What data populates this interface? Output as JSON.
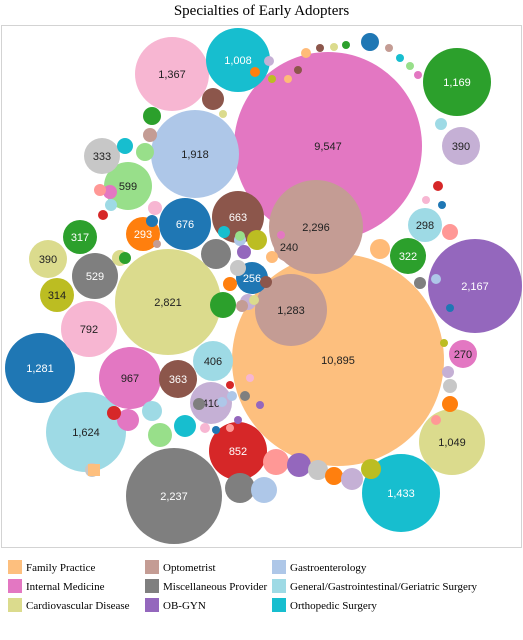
{
  "chart_data": {
    "type": "bubble",
    "title": "Specialties of Early Adopters",
    "legend": [
      {
        "name": "Family Practice",
        "color": "#fdbf7e"
      },
      {
        "name": "Optometrist",
        "color": "#c49c94"
      },
      {
        "name": "Gastroenterology",
        "color": "#aec7e8"
      },
      {
        "name": "Internal Medicine",
        "color": "#e377c2"
      },
      {
        "name": "Miscellaneous Provider",
        "color": "#7f7f7f"
      },
      {
        "name": "General/Gastrointestinal/Geriatric Surgery",
        "color": "#9edae5"
      },
      {
        "name": "Cardiovascular Disease",
        "color": "#dbdb8d"
      },
      {
        "name": "OB-GYN",
        "color": "#9467bd"
      },
      {
        "name": "Orthopedic Surgery",
        "color": "#17becf"
      }
    ],
    "bubbles": [
      {
        "value": 10895,
        "label": "10,895",
        "color": "#fdbf7e"
      },
      {
        "value": 9547,
        "label": "9,547",
        "color": "#e377c2"
      },
      {
        "value": 2821,
        "label": "2,821",
        "color": "#dbdb8d"
      },
      {
        "value": 2296,
        "label": "2,296",
        "color": "#c49c94"
      },
      {
        "value": 2237,
        "label": "2,237",
        "color": "#7f7f7f"
      },
      {
        "value": 2167,
        "label": "2,167",
        "color": "#9467bd"
      },
      {
        "value": 1918,
        "label": "1,918",
        "color": "#aec7e8"
      },
      {
        "value": 1624,
        "label": "1,624",
        "color": "#9edae5"
      },
      {
        "value": 1433,
        "label": "1,433",
        "color": "#17becf"
      },
      {
        "value": 1367,
        "label": "1,367",
        "color": "#f7b6d2"
      },
      {
        "value": 1283,
        "label": "1,283",
        "color": "#c49c94"
      },
      {
        "value": 1281,
        "label": "1,281",
        "color": "#1f77b4"
      },
      {
        "value": 1169,
        "label": "1,169",
        "color": "#2ca02c"
      },
      {
        "value": 1049,
        "label": "1,049",
        "color": "#dbdb8d"
      },
      {
        "value": 1008,
        "label": "1,008",
        "color": "#17becf"
      },
      {
        "value": 967,
        "label": "967",
        "color": "#e377c2"
      },
      {
        "value": 852,
        "label": "852",
        "color": "#d62728"
      },
      {
        "value": 792,
        "label": "792",
        "color": "#f7b6d2"
      },
      {
        "value": 676,
        "label": "676",
        "color": "#1f77b4"
      },
      {
        "value": 663,
        "label": "663",
        "color": "#8c564b"
      },
      {
        "value": 599,
        "label": "599",
        "color": "#98df8a"
      },
      {
        "value": 529,
        "label": "529",
        "color": "#7f7f7f"
      },
      {
        "value": 410,
        "label": "410",
        "color": "#c5b0d5"
      },
      {
        "value": 406,
        "label": "406",
        "color": "#9edae5"
      },
      {
        "value": 390,
        "label": "390",
        "color": "#c5b0d5"
      },
      {
        "value": 390,
        "label": "390",
        "color": "#dbdb8d"
      },
      {
        "value": 363,
        "label": "363",
        "color": "#8c564b"
      },
      {
        "value": 333,
        "label": "333",
        "color": "#c7c7c7"
      },
      {
        "value": 322,
        "label": "322",
        "color": "#2ca02c"
      },
      {
        "value": 317,
        "label": "317",
        "color": "#2ca02c"
      },
      {
        "value": 314,
        "label": "314",
        "color": "#bcbd22"
      },
      {
        "value": 298,
        "label": "298",
        "color": "#9edae5"
      },
      {
        "value": 293,
        "label": "293",
        "color": "#ff7f0e"
      },
      {
        "value": 270,
        "label": "270",
        "color": "#e377c2"
      },
      {
        "value": 256,
        "label": "256",
        "color": "#1f77b4"
      },
      {
        "value": 240,
        "label": "240",
        "color": "#c49c94"
      }
    ]
  }
}
